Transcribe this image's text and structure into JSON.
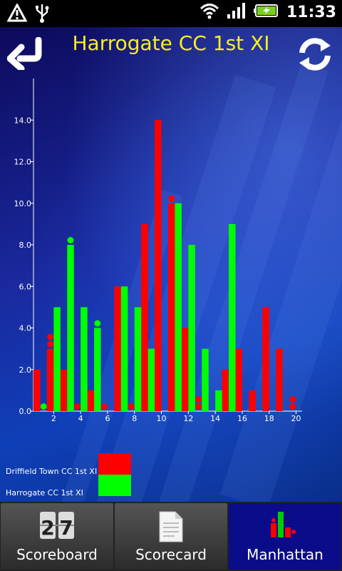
{
  "status_bar": {
    "time": "11:33",
    "icons": [
      "warning-icon",
      "usb-icon",
      "wifi-icon",
      "signal-icon",
      "battery-charging-icon"
    ]
  },
  "header": {
    "title": "Harrogate CC 1st XI",
    "back_icon": "back-arrow-icon",
    "refresh_icon": "refresh-icon"
  },
  "chart_data": {
    "type": "bar",
    "title": "",
    "xlabel": "",
    "ylabel": "",
    "ylim": [
      0,
      16
    ],
    "y_ticks": [
      "0.0",
      "2.0",
      "4.0",
      "6.0",
      "8.0",
      "10.0",
      "12.0",
      "14.0"
    ],
    "x_ticks": [
      "2",
      "4",
      "6",
      "8",
      "10",
      "12",
      "14",
      "16",
      "18",
      "20"
    ],
    "categories": [
      1,
      2,
      3,
      4,
      5,
      6,
      7,
      8,
      9,
      10,
      11,
      12,
      13,
      14,
      15,
      16,
      17,
      18,
      19,
      20
    ],
    "series": [
      {
        "name": "Driffield Town CC 1st XI",
        "color": "#ff0000",
        "values": [
          2,
          3,
          2,
          0,
          1,
          0,
          6,
          0,
          9,
          14,
          10,
          4,
          0,
          0,
          2,
          3,
          1,
          5,
          3,
          0
        ],
        "wickets": [
          0,
          2,
          0,
          1,
          0,
          1,
          0,
          1,
          0,
          0,
          1,
          0,
          2,
          0,
          0,
          0,
          0,
          0,
          0,
          2
        ]
      },
      {
        "name": "Harrogate CC 1st XI",
        "color": "#00ff00",
        "values": [
          0,
          5,
          8,
          5,
          4,
          0,
          6,
          5,
          3,
          0,
          10,
          8,
          3,
          1,
          9,
          0,
          0,
          0,
          0,
          0
        ],
        "wickets": [
          1,
          0,
          1,
          0,
          1,
          0,
          0,
          0,
          0,
          0,
          0,
          0,
          0,
          0,
          0,
          0,
          0,
          0,
          0,
          0
        ]
      }
    ],
    "legend_position": "bottom-left"
  },
  "legend": {
    "items": [
      {
        "label": "Driffield Town CC 1st XI",
        "color": "#ff0000"
      },
      {
        "label": "Harrogate CC 1st XI",
        "color": "#00ff00"
      }
    ]
  },
  "tabs": [
    {
      "label": "Scoreboard",
      "icon": "scoreboard-icon",
      "active": false
    },
    {
      "label": "Scorecard",
      "icon": "scorecard-document-icon",
      "active": false
    },
    {
      "label": "Manhattan",
      "icon": "manhattan-chart-icon",
      "active": true
    }
  ]
}
